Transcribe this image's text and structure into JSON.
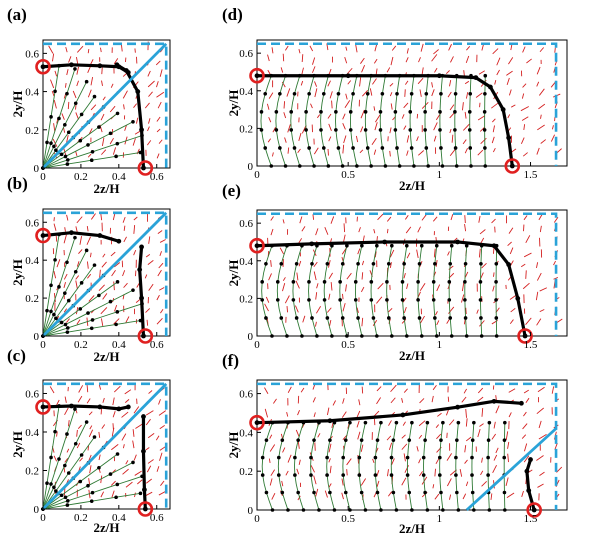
{
  "chart_data": [
    {
      "id": "a",
      "type": "scatter",
      "panel_label": "(a)",
      "xlabel": "2z/H",
      "ylabel": "2y/H",
      "xlim": [
        0,
        0.67
      ],
      "ylim": [
        0,
        0.67
      ],
      "xticks": [
        "0",
        "0.2",
        "0.4",
        "0.6"
      ],
      "yticks": [
        "0",
        "0.2",
        "0.4",
        "0.6"
      ],
      "dashed_boundary": {
        "z": 0.65,
        "y": 0.65
      },
      "diagonal_line": [
        [
          0,
          0
        ],
        [
          0.65,
          0.65
        ]
      ],
      "circle_markers": [
        {
          "x": 0.0,
          "y": 0.53
        },
        {
          "x": 0.54,
          "y": 0.0
        }
      ],
      "separatrix_vertical": [
        [
          0.39,
          0.54
        ],
        [
          0.44,
          0.51
        ],
        [
          0.5,
          0.4
        ],
        [
          0.52,
          0.2
        ],
        [
          0.53,
          0.0
        ]
      ],
      "separatrix_horizontal": [
        [
          0.0,
          0.53
        ],
        [
          0.15,
          0.54
        ],
        [
          0.3,
          0.535
        ],
        [
          0.4,
          0.53
        ],
        [
          0.45,
          0.5
        ]
      ]
    },
    {
      "id": "b",
      "type": "scatter",
      "panel_label": "(b)",
      "xlabel": "2z/H",
      "ylabel": "2y/H",
      "xlim": [
        0,
        0.67
      ],
      "ylim": [
        0,
        0.67
      ],
      "xticks": [
        "0",
        "0.2",
        "0.4",
        "0.6"
      ],
      "yticks": [
        "0",
        "0.2",
        "0.4",
        "0.6"
      ],
      "dashed_boundary": {
        "z": 0.65,
        "y": 0.65
      },
      "diagonal_line": [
        [
          0,
          0
        ],
        [
          0.65,
          0.65
        ]
      ],
      "circle_markers": [
        {
          "x": 0.0,
          "y": 0.53
        },
        {
          "x": 0.54,
          "y": 0.0
        }
      ],
      "separatrix_vertical": [
        [
          0.52,
          0.47
        ],
        [
          0.51,
          0.35
        ],
        [
          0.52,
          0.2
        ],
        [
          0.53,
          0.0
        ]
      ],
      "separatrix_horizontal": [
        [
          0.0,
          0.53
        ],
        [
          0.15,
          0.545
        ],
        [
          0.3,
          0.53
        ],
        [
          0.4,
          0.5
        ]
      ]
    },
    {
      "id": "c",
      "type": "scatter",
      "panel_label": "(c)",
      "xlabel": "2z/H",
      "ylabel": "2y/H",
      "xlim": [
        0,
        0.67
      ],
      "ylim": [
        0,
        0.67
      ],
      "xticks": [
        "0",
        "0.2",
        "0.4",
        "0.6"
      ],
      "yticks": [
        "0",
        "0.2",
        "0.4",
        "0.6"
      ],
      "dashed_boundary": {
        "z": 0.65,
        "y": 0.65
      },
      "diagonal_line": [
        [
          0,
          0
        ],
        [
          0.65,
          0.65
        ]
      ],
      "circle_markers": [
        {
          "x": 0.0,
          "y": 0.53
        },
        {
          "x": 0.54,
          "y": 0.0
        }
      ],
      "separatrix_vertical": [
        [
          0.53,
          0.48
        ],
        [
          0.53,
          0.3
        ],
        [
          0.535,
          0.1
        ],
        [
          0.54,
          0.0
        ]
      ],
      "separatrix_horizontal": [
        [
          0.0,
          0.53
        ],
        [
          0.15,
          0.535
        ],
        [
          0.3,
          0.53
        ],
        [
          0.4,
          0.52
        ],
        [
          0.45,
          0.53
        ]
      ]
    },
    {
      "id": "d",
      "type": "scatter",
      "panel_label": "(d)",
      "xlabel": "2z/H",
      "ylabel": "2y/H",
      "xlim": [
        0,
        1.7
      ],
      "ylim": [
        0,
        0.67
      ],
      "xticks": [
        "0",
        "0.5",
        "1",
        "1.5"
      ],
      "yticks": [
        "0",
        "0.2",
        "0.4",
        "0.6"
      ],
      "dashed_boundary": {
        "z": 1.64,
        "y": 0.65
      },
      "circle_markers": [
        {
          "x": 0.0,
          "y": 0.48
        },
        {
          "x": 1.4,
          "y": 0.0
        }
      ],
      "separatrix_horizontal": [
        [
          0.0,
          0.48
        ],
        [
          0.5,
          0.48
        ],
        [
          1.0,
          0.48
        ],
        [
          1.2,
          0.47
        ],
        [
          1.28,
          0.42
        ],
        [
          1.35,
          0.3
        ],
        [
          1.38,
          0.15
        ],
        [
          1.4,
          0.0
        ]
      ]
    },
    {
      "id": "e",
      "type": "scatter",
      "panel_label": "(e)",
      "xlabel": "2z/H",
      "ylabel": "2y/H",
      "xlim": [
        0,
        1.7
      ],
      "ylim": [
        0,
        0.67
      ],
      "xticks": [
        "0",
        "0.5",
        "1",
        "1.5"
      ],
      "yticks": [
        "0",
        "0.2",
        "0.4",
        "0.6"
      ],
      "dashed_boundary": {
        "z": 1.64,
        "y": 0.65
      },
      "circle_markers": [
        {
          "x": 0.0,
          "y": 0.48
        },
        {
          "x": 1.47,
          "y": 0.0
        }
      ],
      "separatrix_horizontal": [
        [
          0.0,
          0.48
        ],
        [
          0.3,
          0.49
        ],
        [
          0.7,
          0.5
        ],
        [
          1.1,
          0.5
        ],
        [
          1.3,
          0.48
        ],
        [
          1.38,
          0.38
        ],
        [
          1.43,
          0.2
        ],
        [
          1.47,
          0.0
        ]
      ]
    },
    {
      "id": "f",
      "type": "scatter",
      "panel_label": "(f)",
      "xlabel": "2z/H",
      "ylabel": "2y/H",
      "xlim": [
        0,
        1.7
      ],
      "ylim": [
        0,
        0.67
      ],
      "xticks": [
        "0",
        "0.5",
        "1",
        "1.5"
      ],
      "yticks": [
        "0",
        "0.2",
        "0.4",
        "0.6"
      ],
      "dashed_boundary": {
        "z": 1.64,
        "y": 0.65
      },
      "diagonal_line": [
        [
          1.15,
          0.0
        ],
        [
          1.64,
          0.42
        ]
      ],
      "circle_markers": [
        {
          "x": 0.0,
          "y": 0.45
        },
        {
          "x": 1.52,
          "y": 0.0
        }
      ],
      "separatrix_horizontal": [
        [
          0.0,
          0.45
        ],
        [
          0.4,
          0.46
        ],
        [
          0.8,
          0.49
        ],
        [
          1.1,
          0.53
        ],
        [
          1.3,
          0.56
        ],
        [
          1.45,
          0.55
        ]
      ],
      "separatrix_vertical": [
        [
          1.5,
          0.26
        ],
        [
          1.48,
          0.2
        ],
        [
          1.49,
          0.1
        ],
        [
          1.52,
          0.0
        ]
      ]
    }
  ]
}
